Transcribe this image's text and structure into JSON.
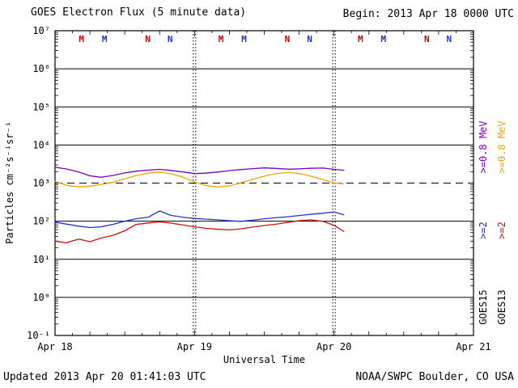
{
  "header": {
    "title": "GOES Electron Flux (5 minute data)",
    "begin": "Begin: 2013 Apr 18 0000 UTC"
  },
  "footer": {
    "updated": "Updated 2013 Apr 20 01:41:03 UTC",
    "credit": "NOAA/SWPC Boulder, CO USA"
  },
  "right_labels": [
    {
      "text": ">=0.8 MeV",
      "color": "#7700BE",
      "column": "inner"
    },
    {
      "text": ">=2",
      "color": "#2233CC",
      "column": "inner"
    },
    {
      "text": "GOES15",
      "color": "#000000",
      "column": "inner"
    },
    {
      "text": ">=0.8 MeV",
      "color": "#E8A800",
      "column": "outer"
    },
    {
      "text": ">=2",
      "color": "#CC1111",
      "column": "outer"
    },
    {
      "text": "GOES13",
      "color": "#000000",
      "column": "outer"
    }
  ],
  "chart_data": {
    "type": "line",
    "title": "GOES Electron Flux (5 minute data)",
    "xlabel": "Universal Time",
    "ylabel": "Particles cm⁻²s⁻¹sr⁻¹",
    "y_scale": "log10",
    "x_range_days": [
      0,
      3
    ],
    "y_range_exponents": [
      -1,
      7
    ],
    "grid": "horizontal-decades",
    "legend_position": "right-margin-rotated",
    "threshold_flux": 1000,
    "day_boundary_lines_days": [
      1,
      2
    ],
    "x_ticks": [
      {
        "day": 0,
        "label": "Apr 18"
      },
      {
        "day": 1,
        "label": "Apr 19"
      },
      {
        "day": 2,
        "label": "Apr 20"
      },
      {
        "day": 3,
        "label": "Apr 21"
      }
    ],
    "y_ticks": [
      {
        "exp": 7,
        "label": "10⁷"
      },
      {
        "exp": 6,
        "label": "10⁶"
      },
      {
        "exp": 5,
        "label": "10⁵"
      },
      {
        "exp": 4,
        "label": "10⁴"
      },
      {
        "exp": 3,
        "label": "10³"
      },
      {
        "exp": 2,
        "label": "10²"
      },
      {
        "exp": 1,
        "label": "10¹"
      },
      {
        "exp": 0,
        "label": "10⁰"
      },
      {
        "exp": -1,
        "label": "10⁻¹"
      }
    ],
    "series": [
      {
        "name": "GOES15 >=0.8 MeV",
        "satellite": "GOES15",
        "energy": ">=0.8 MeV",
        "color": "#7700BE",
        "x": [
          0,
          0.08,
          0.17,
          0.25,
          0.33,
          0.42,
          0.5,
          0.58,
          0.67,
          0.75,
          0.83,
          0.92,
          1.0,
          1.08,
          1.17,
          1.25,
          1.33,
          1.42,
          1.5,
          1.58,
          1.67,
          1.75,
          1.83,
          1.92,
          2.0,
          2.07
        ],
        "y": [
          2600,
          2350,
          1950,
          1550,
          1420,
          1600,
          1850,
          2050,
          2200,
          2300,
          2150,
          1950,
          1780,
          1820,
          1960,
          2120,
          2260,
          2400,
          2500,
          2430,
          2320,
          2360,
          2450,
          2480,
          2300,
          2180
        ]
      },
      {
        "name": "GOES13 >=0.8 MeV",
        "satellite": "GOES13",
        "energy": ">=0.8 MeV",
        "color": "#E8A800",
        "x": [
          0,
          0.08,
          0.17,
          0.25,
          0.33,
          0.42,
          0.5,
          0.58,
          0.67,
          0.75,
          0.83,
          0.92,
          1.0,
          1.08,
          1.17,
          1.25,
          1.33,
          1.42,
          1.5,
          1.58,
          1.67,
          1.75,
          1.83,
          1.92,
          2.0,
          2.07
        ],
        "y": [
          1100,
          880,
          790,
          830,
          920,
          1060,
          1300,
          1580,
          1830,
          1950,
          1760,
          1420,
          1060,
          870,
          790,
          840,
          1010,
          1260,
          1520,
          1760,
          1900,
          1790,
          1540,
          1240,
          1020,
          950
        ]
      },
      {
        "name": "GOES15 >=2 MeV",
        "satellite": "GOES15",
        "energy": ">=2 MeV",
        "color": "#2233CC",
        "x": [
          0,
          0.08,
          0.17,
          0.25,
          0.33,
          0.42,
          0.5,
          0.58,
          0.67,
          0.75,
          0.83,
          0.92,
          1.0,
          1.08,
          1.17,
          1.25,
          1.33,
          1.42,
          1.5,
          1.58,
          1.67,
          1.75,
          1.83,
          1.92,
          2.0,
          2.07
        ],
        "y": [
          95,
          84,
          74,
          68,
          71,
          83,
          100,
          116,
          128,
          185,
          142,
          126,
          118,
          113,
          108,
          103,
          99,
          106,
          116,
          123,
          131,
          141,
          151,
          162,
          176,
          148
        ]
      },
      {
        "name": "GOES13 >=2 MeV",
        "satellite": "GOES13",
        "energy": ">=2 MeV",
        "color": "#CC1111",
        "x": [
          0,
          0.08,
          0.17,
          0.25,
          0.33,
          0.42,
          0.5,
          0.58,
          0.67,
          0.75,
          0.83,
          0.92,
          1.0,
          1.08,
          1.17,
          1.25,
          1.33,
          1.42,
          1.5,
          1.58,
          1.67,
          1.75,
          1.83,
          1.92,
          2.0,
          2.07
        ],
        "y": [
          30,
          27,
          34,
          29,
          36,
          43,
          56,
          82,
          90,
          96,
          89,
          79,
          71,
          65,
          61,
          59,
          63,
          70,
          77,
          83,
          93,
          103,
          108,
          99,
          78,
          54
        ]
      }
    ],
    "markers": [
      {
        "text": "M",
        "color": "#CC0000",
        "day": 0.19
      },
      {
        "text": "M",
        "color": "#2233CC",
        "day": 0.355
      },
      {
        "text": "N",
        "color": "#CC0000",
        "day": 0.665
      },
      {
        "text": "N",
        "color": "#2233CC",
        "day": 0.825
      },
      {
        "text": "M",
        "color": "#CC0000",
        "day": 1.19
      },
      {
        "text": "M",
        "color": "#2233CC",
        "day": 1.355
      },
      {
        "text": "N",
        "color": "#CC0000",
        "day": 1.665
      },
      {
        "text": "N",
        "color": "#2233CC",
        "day": 1.825
      },
      {
        "text": "M",
        "color": "#CC0000",
        "day": 2.19
      },
      {
        "text": "M",
        "color": "#2233CC",
        "day": 2.355
      },
      {
        "text": "N",
        "color": "#CC0000",
        "day": 2.665
      },
      {
        "text": "N",
        "color": "#2233CC",
        "day": 2.825
      }
    ]
  }
}
